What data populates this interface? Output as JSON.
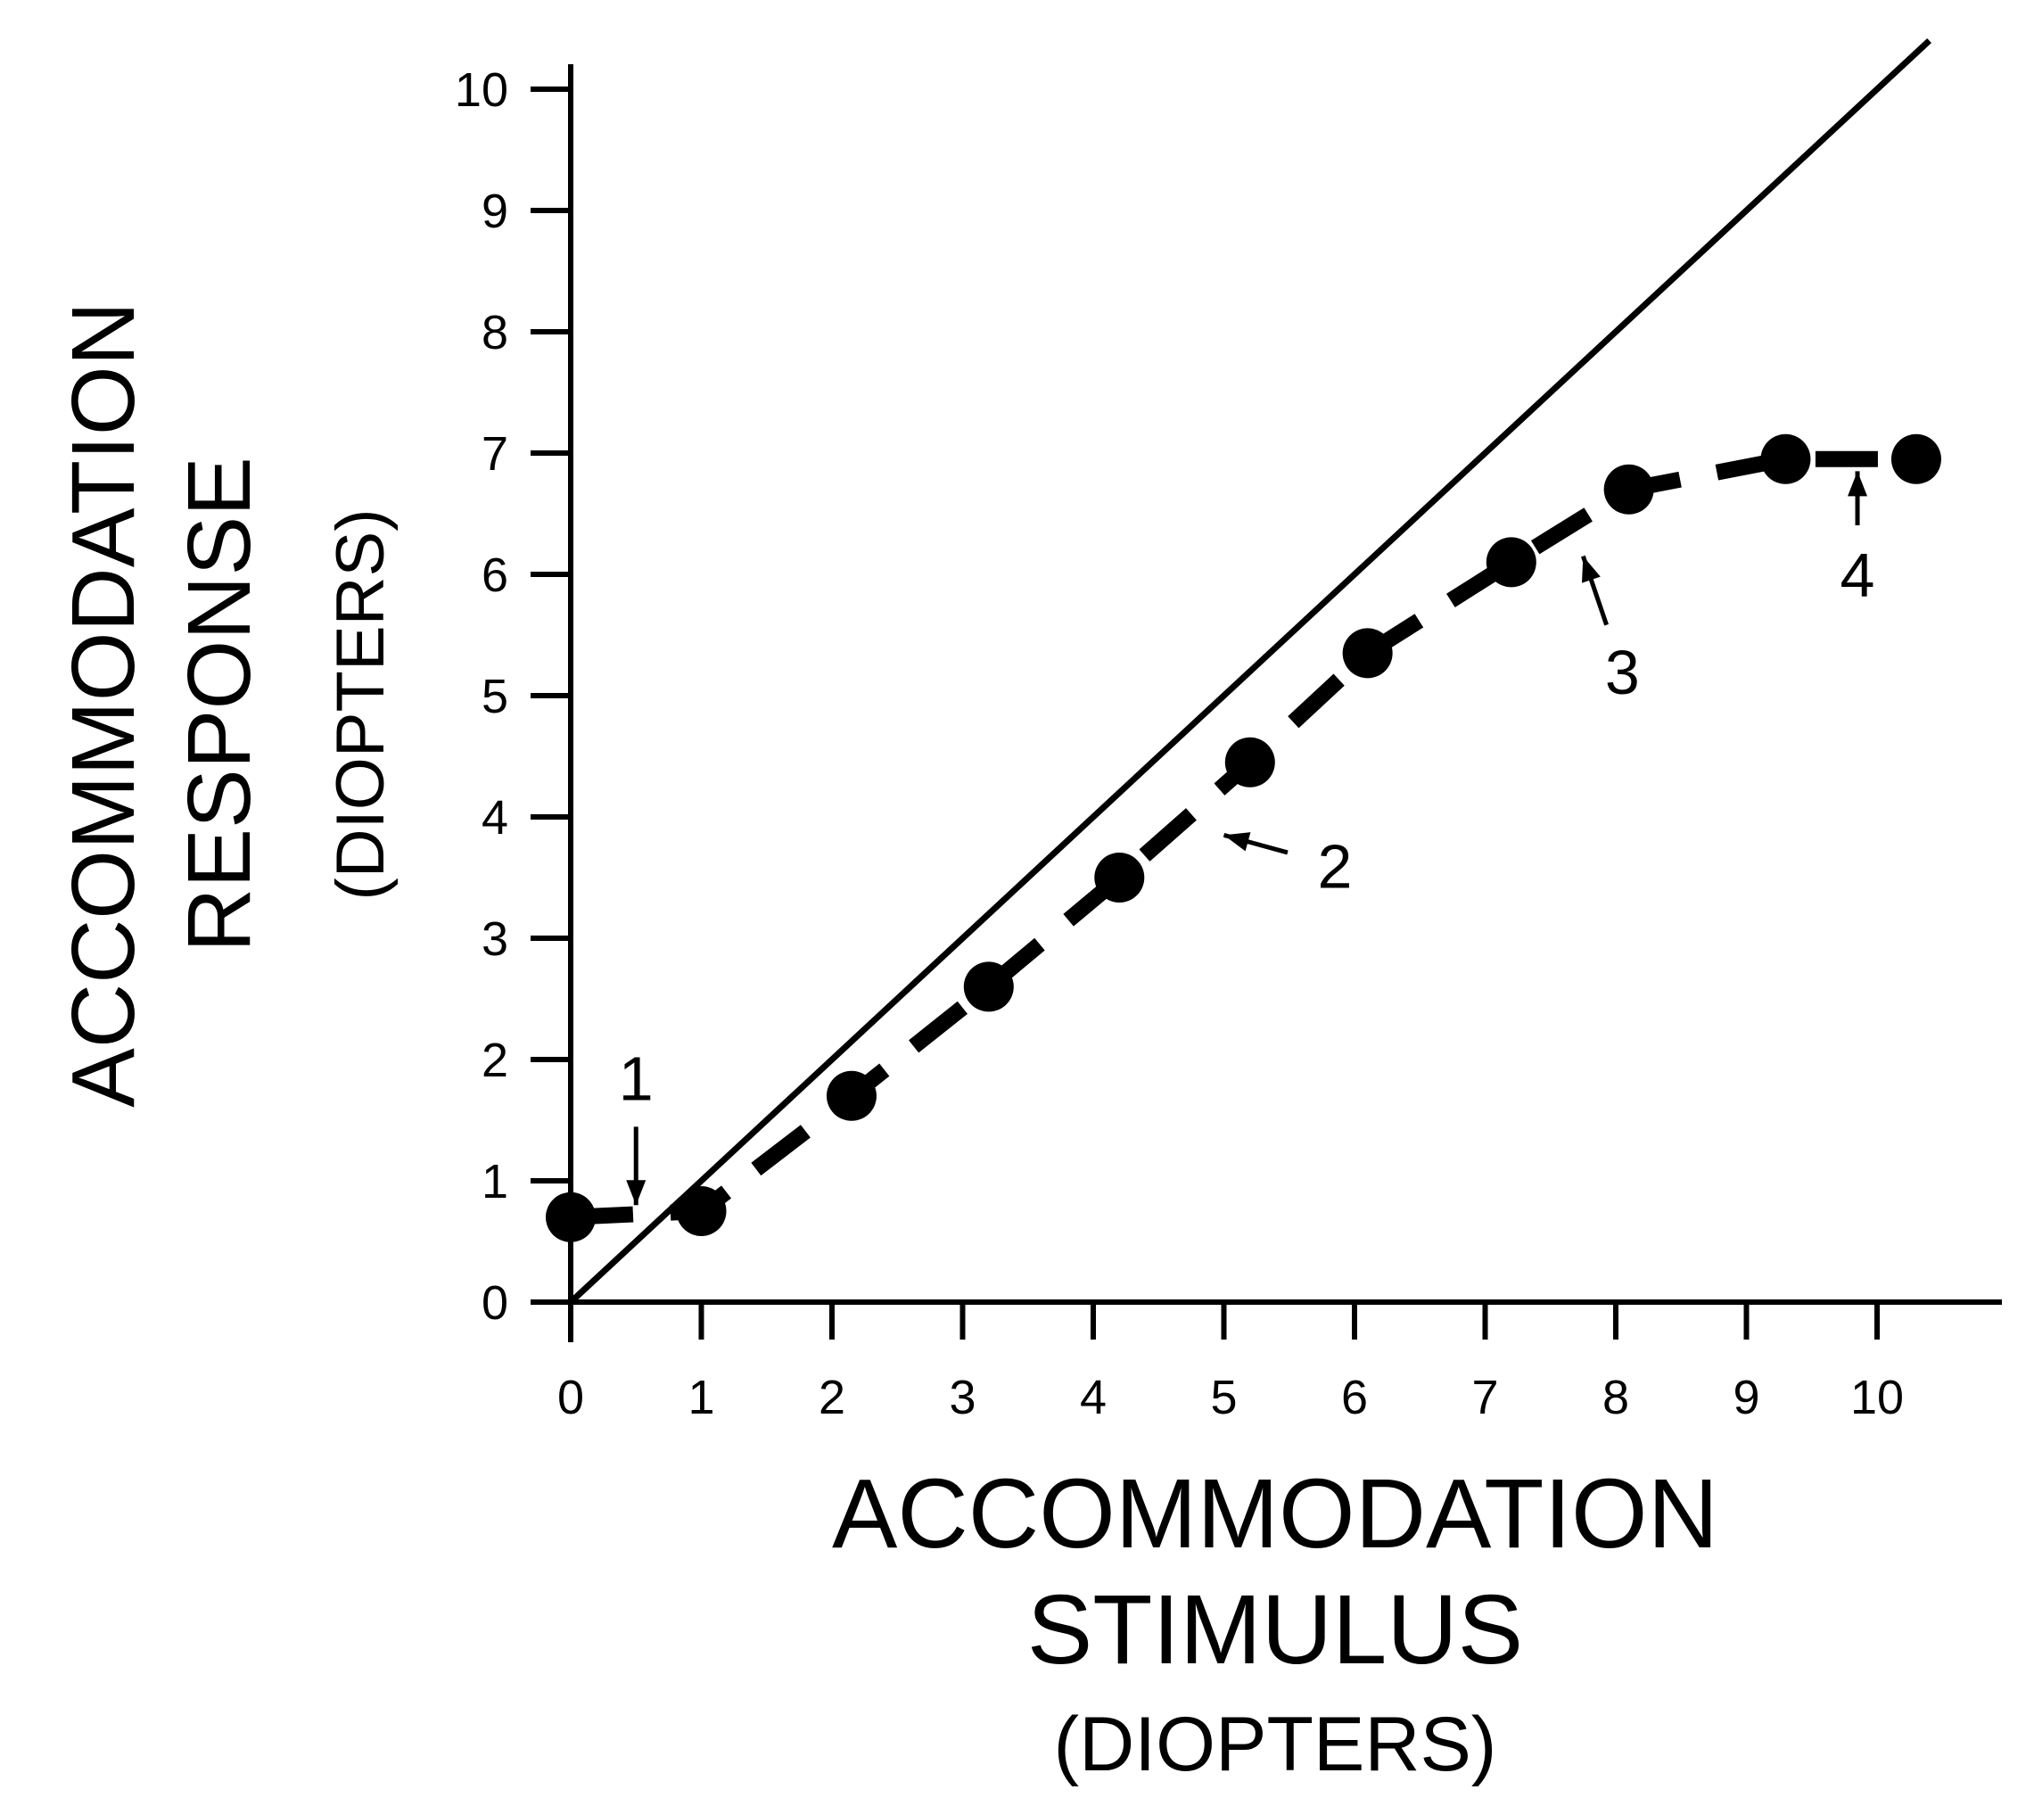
{
  "chart_data": {
    "type": "line",
    "xlabel": "ACCOMMODATION",
    "xlabel_line2": "STIMULUS",
    "xunit": "(DIOPTERS)",
    "ylabel": "ACCOMMODATION",
    "ylabel_line2": "RESPONSE",
    "yunit": "(DIOPTERS)",
    "xlim": [
      0,
      10
    ],
    "ylim": [
      0,
      10
    ],
    "x_ticks": [
      "0",
      "1",
      "2",
      "3",
      "4",
      "5",
      "6",
      "7",
      "8",
      "9",
      "10"
    ],
    "y_ticks": [
      "0",
      "1",
      "2",
      "3",
      "4",
      "5",
      "6",
      "7",
      "8",
      "9",
      "10"
    ],
    "grid": false,
    "series": [
      {
        "style": "solid",
        "points": [
          [
            0,
            0
          ],
          [
            10.4,
            10.4
          ]
        ]
      },
      {
        "style": "dashed-with-markers",
        "points": [
          [
            0,
            0.7
          ],
          [
            1.0,
            0.75
          ],
          [
            2.15,
            1.7
          ],
          [
            3.2,
            2.6
          ],
          [
            4.2,
            3.5
          ],
          [
            5.2,
            4.45
          ],
          [
            6.1,
            5.35
          ],
          [
            7.2,
            6.1
          ],
          [
            8.1,
            6.7
          ],
          [
            9.3,
            6.95
          ],
          [
            10.3,
            6.95
          ]
        ]
      }
    ],
    "annotations": [
      {
        "label": "1",
        "point": [
          0.5,
          0.8
        ],
        "text_at": [
          0.5,
          1.85
        ]
      },
      {
        "label": "2",
        "point": [
          5.0,
          3.85
        ],
        "text_at": [
          5.85,
          3.6
        ]
      },
      {
        "label": "3",
        "point": [
          7.75,
          6.15
        ],
        "text_at": [
          8.05,
          5.2
        ]
      },
      {
        "label": "4",
        "point": [
          9.85,
          6.85
        ],
        "text_at": [
          9.85,
          6.0
        ]
      }
    ],
    "colors": {
      "ink": "#000000",
      "background": "#ffffff"
    }
  }
}
